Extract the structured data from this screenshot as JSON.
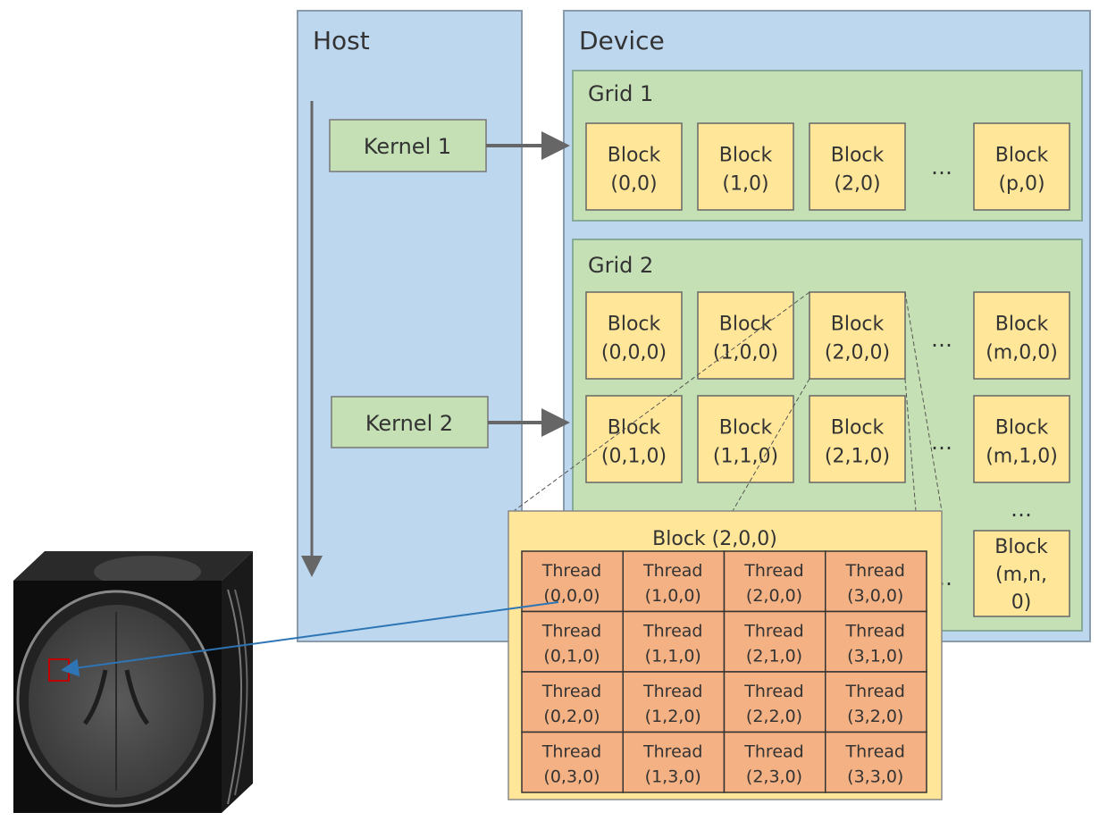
{
  "host": {
    "title": "Host",
    "kernels": [
      "Kernel 1",
      "Kernel 2"
    ]
  },
  "device": {
    "title": "Device",
    "grid1": {
      "title": "Grid 1",
      "blocks": [
        [
          "Block",
          "(0,0)"
        ],
        [
          "Block",
          "(1,0)"
        ],
        [
          "Block",
          "(2,0)"
        ],
        [
          "Block",
          "(p,0)"
        ]
      ],
      "ellipsis": "…"
    },
    "grid2": {
      "title": "Grid 2",
      "row0": [
        [
          "Block",
          "(0,0,0)"
        ],
        [
          "Block",
          "(1,0,0)"
        ],
        [
          "Block",
          "(2,0,0)"
        ],
        [
          "Block",
          "(m,0,0)"
        ]
      ],
      "row1": [
        [
          "Block",
          "(0,1,0)"
        ],
        [
          "Block",
          "(1,1,0)"
        ],
        [
          "Block",
          "(2,1,0)"
        ],
        [
          "Block",
          "(m,1,0)"
        ]
      ],
      "last": [
        "Block",
        "(m,n,",
        "0)"
      ],
      "ellipsis": "…",
      "vellipsis": "…"
    }
  },
  "zoomed_block": {
    "title": "Block (2,0,0)",
    "threads": [
      [
        "(0,0,0)",
        "(1,0,0)",
        "(2,0,0)",
        "(3,0,0)"
      ],
      [
        "(0,1,0)",
        "(1,1,0)",
        "(2,1,0)",
        "(3,1,0)"
      ],
      [
        "(0,2,0)",
        "(1,2,0)",
        "(2,2,0)",
        "(3,2,0)"
      ],
      [
        "(0,3,0)",
        "(1,3,0)",
        "(2,3,0)",
        "(3,3,0)"
      ]
    ],
    "thread_label": "Thread"
  },
  "colors": {
    "host_device": "#bdd7ee",
    "kernel_grid": "#c5e0b4",
    "block": "#ffe699",
    "thread": "#f4b183",
    "pointer": "#2e75b6",
    "roi": "#c00000"
  }
}
